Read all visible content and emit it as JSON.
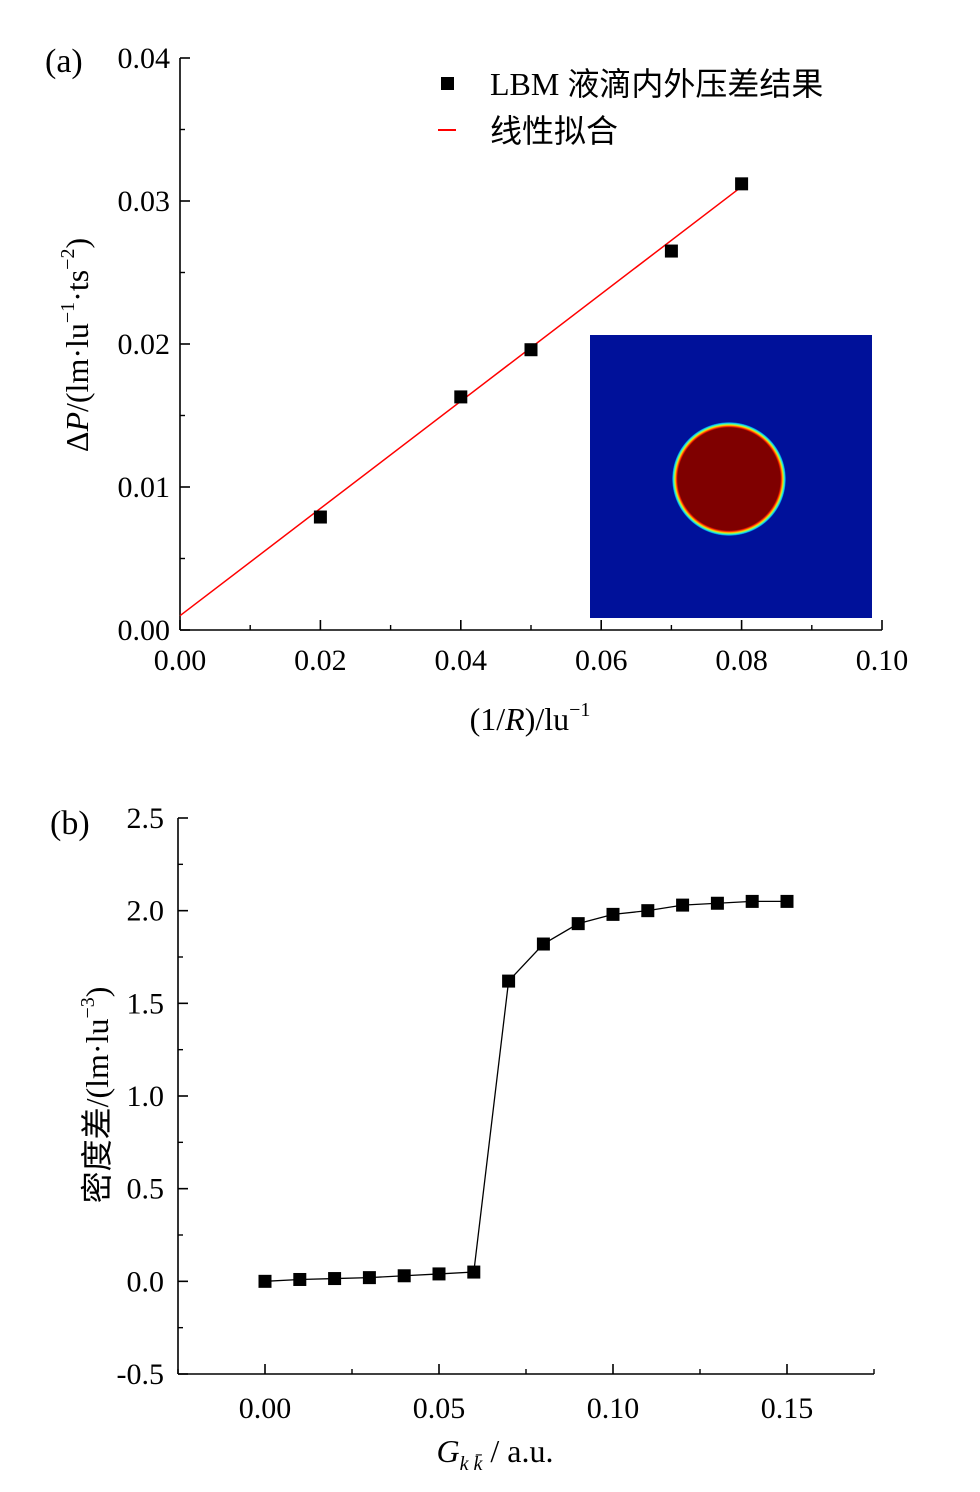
{
  "chart_data": [
    {
      "panel": "(a)",
      "type": "scatter",
      "xlabel_parts": [
        "(1/",
        "R",
        ")/lu",
        "−1"
      ],
      "ylabel_parts": [
        "Δ",
        "P",
        "/(lm·lu",
        "−1",
        "·ts",
        "−2",
        ")"
      ],
      "xlim": [
        0.0,
        0.1
      ],
      "ylim": [
        0.0,
        0.04
      ],
      "xticks": [
        "0.00",
        "0.02",
        "0.04",
        "0.06",
        "0.08",
        "0.10"
      ],
      "yticks": [
        "0.00",
        "0.01",
        "0.02",
        "0.03",
        "0.04"
      ],
      "series": [
        {
          "name": "LBM 液滴内外压差结果",
          "kind": "scatter",
          "color": "#000000",
          "x": [
            0.02,
            0.04,
            0.05,
            0.07,
            0.08
          ],
          "y": [
            0.0079,
            0.0163,
            0.0196,
            0.0265,
            0.0312
          ]
        },
        {
          "name": "线性拟合",
          "kind": "line",
          "color": "#ff0000",
          "x": [
            0.0,
            0.08
          ],
          "y": [
            0.001,
            0.031
          ]
        }
      ],
      "legend": "top-right",
      "inset": {
        "background": "#00119a",
        "droplet": "#7f0000",
        "rim": [
          "#ff2200",
          "#ffd400",
          "#50ffa0",
          "#00b4ff"
        ]
      }
    },
    {
      "panel": "(b)",
      "type": "line",
      "xlabel_parts": [
        "G",
        "k k̄",
        " / a.u."
      ],
      "ylabel_parts": [
        "密度差/(lm·lu",
        "−3",
        ")"
      ],
      "xlim": [
        -0.025,
        0.175
      ],
      "ylim": [
        -0.5,
        2.5
      ],
      "xticks": [
        "0.00",
        "0.05",
        "0.10",
        "0.15"
      ],
      "yticks": [
        "-0.5",
        "0.0",
        "0.5",
        "1.0",
        "1.5",
        "2.0",
        "2.5"
      ],
      "series": [
        {
          "kind": "line+markers",
          "color": "#000000",
          "x": [
            0.0,
            0.01,
            0.02,
            0.03,
            0.04,
            0.05,
            0.06,
            0.07,
            0.08,
            0.09,
            0.1,
            0.11,
            0.12,
            0.13,
            0.14,
            0.15
          ],
          "y": [
            0.0,
            0.01,
            0.015,
            0.02,
            0.03,
            0.04,
            0.05,
            1.62,
            1.82,
            1.93,
            1.98,
            2.0,
            2.03,
            2.04,
            2.05,
            2.05
          ]
        }
      ]
    }
  ]
}
